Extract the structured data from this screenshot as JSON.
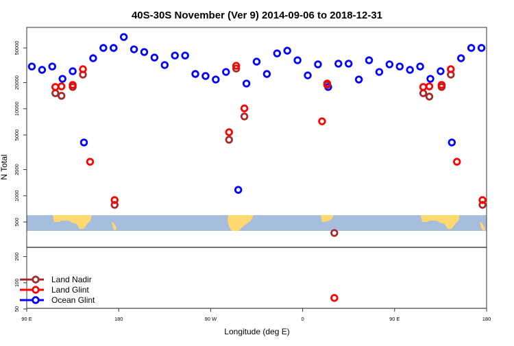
{
  "chart_data": {
    "type": "scatter",
    "title": "40S-30S November (Ver 9)   2014-09-06 to 2018-12-31",
    "xlabel": "Longitude (deg E)",
    "ylabel": "N Total",
    "yscale": "log",
    "xlim": [
      90,
      540
    ],
    "ylim": [
      50,
      86000
    ],
    "x_ticks": [
      {
        "value": 90,
        "label": "90 E"
      },
      {
        "value": 180,
        "label": "180"
      },
      {
        "value": 270,
        "label": "90 W"
      },
      {
        "value": 360,
        "label": "0"
      },
      {
        "value": 450,
        "label": "90 E"
      },
      {
        "value": 540,
        "label": "180"
      }
    ],
    "y_ticks": [
      {
        "value": 50000,
        "label": "50000"
      },
      {
        "value": 20000,
        "label": "20000"
      },
      {
        "value": 10000,
        "label": "10000"
      },
      {
        "value": 5000,
        "label": "5000"
      },
      {
        "value": 2000,
        "label": "2000"
      },
      {
        "value": 1000,
        "label": "1000"
      },
      {
        "value": 500,
        "label": "500"
      },
      {
        "value": 200,
        "label": "200"
      },
      {
        "value": 100,
        "label": "100"
      },
      {
        "value": 50,
        "label": "50"
      }
    ],
    "legend_position": "bottom-left",
    "series": [
      {
        "name": "Land Nadir",
        "color": "#a52a2a",
        "x": [
          118,
          124,
          135,
          145,
          176,
          288,
          295,
          303,
          384,
          391,
          478,
          484,
          496,
          505,
          536
        ],
        "y": [
          15100,
          14100,
          17800,
          24700,
          787,
          4410,
          29000,
          8160,
          18800,
          374,
          15100,
          13800,
          17800,
          24700,
          787
        ]
      },
      {
        "name": "Land Glint",
        "color": "#ff0000",
        "x": [
          118,
          124,
          135,
          145,
          152,
          176,
          288,
          295,
          303,
          379,
          384,
          391,
          478,
          484,
          496,
          505,
          511,
          536
        ],
        "y": [
          17800,
          18100,
          18800,
          28500,
          2460,
          893,
          5380,
          31200,
          10100,
          7180,
          19500,
          67,
          17800,
          18100,
          18800,
          28500,
          2460,
          893
        ]
      },
      {
        "name": "Ocean Glint",
        "color": "#0000ff",
        "x": [
          95,
          105,
          115,
          125,
          135,
          146,
          155,
          165,
          175,
          185,
          195,
          205,
          215,
          225,
          235,
          245,
          255,
          265,
          275,
          285,
          297,
          305,
          315,
          325,
          335,
          345,
          355,
          365,
          375,
          385,
          395,
          405,
          415,
          425,
          435,
          445,
          455,
          465,
          475,
          485,
          495,
          506,
          515,
          525,
          535
        ],
        "y": [
          30600,
          28000,
          30600,
          22100,
          27000,
          4100,
          38100,
          50000,
          50000,
          66800,
          48200,
          44900,
          38800,
          31800,
          40900,
          40900,
          25100,
          23800,
          21700,
          26500,
          1170,
          19500,
          34800,
          25100,
          43300,
          46500,
          36100,
          24200,
          32400,
          17800,
          33000,
          33000,
          21700,
          36100,
          26500,
          32400,
          30600,
          28000,
          30600,
          22100,
          27000,
          4100,
          38100,
          50000,
          50000
        ]
      }
    ]
  }
}
